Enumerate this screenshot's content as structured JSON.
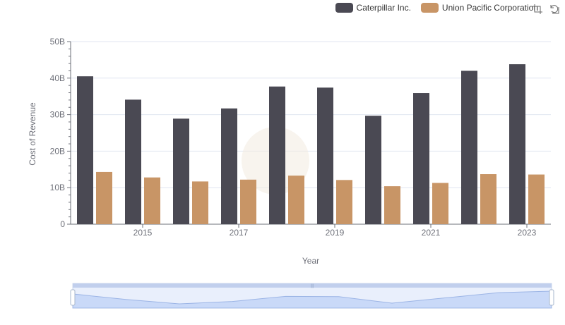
{
  "legend": {
    "items": [
      {
        "label": "Caterpillar Inc.",
        "color": "#4a4953"
      },
      {
        "label": "Union Pacific Corporation",
        "color": "#c89566"
      }
    ]
  },
  "toolbox": {
    "zoom_icon": "zoom-select-icon",
    "restore_icon": "restore-icon"
  },
  "chart_data": {
    "type": "bar",
    "title": "",
    "xlabel": "Year",
    "ylabel": "Cost of Revenue",
    "categories": [
      "2014",
      "2015",
      "2016",
      "2017",
      "2018",
      "2019",
      "2020",
      "2021",
      "2022",
      "2023"
    ],
    "x_tick_labels": [
      "2015",
      "2017",
      "2019",
      "2021",
      "2023"
    ],
    "y_tick_labels": [
      "0",
      "10B",
      "20B",
      "30B",
      "40B",
      "50B"
    ],
    "ylim": [
      0,
      50000000000
    ],
    "grid": true,
    "legend_position": "top-right",
    "series": [
      {
        "name": "Caterpillar Inc.",
        "color": "#4a4953",
        "values": [
          40500000000,
          34100000000,
          28900000000,
          31700000000,
          37700000000,
          37400000000,
          29700000000,
          35900000000,
          42000000000,
          43800000000
        ]
      },
      {
        "name": "Union Pacific Corporation",
        "color": "#c89566",
        "values": [
          14300000000,
          12800000000,
          11700000000,
          12200000000,
          13300000000,
          12100000000,
          10400000000,
          11300000000,
          13700000000,
          13600000000
        ]
      }
    ]
  }
}
